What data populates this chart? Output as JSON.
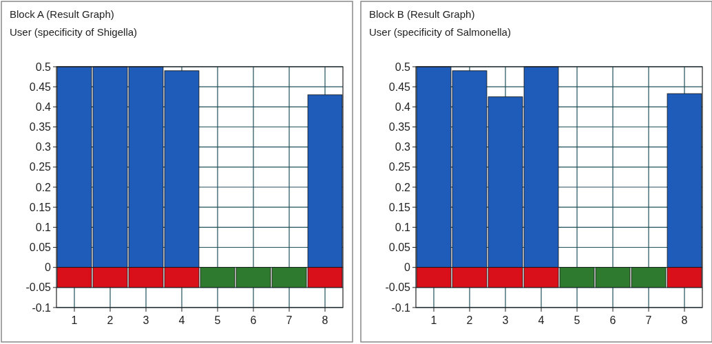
{
  "chart_data": [
    {
      "type": "bar",
      "title": "Block A (Result Graph)",
      "subtitle": "User (specificity of Shigella)",
      "categories": [
        "1",
        "2",
        "3",
        "4",
        "5",
        "6",
        "7",
        "8"
      ],
      "stacked": true,
      "grid": true,
      "ylim": [
        -0.1,
        0.5
      ],
      "yticks": [
        -0.1,
        -0.05,
        0,
        0.05,
        0.1,
        0.15,
        0.2,
        0.25,
        0.3,
        0.35,
        0.4,
        0.45,
        0.5
      ],
      "series": [
        {
          "color": "#1f5bb8",
          "values": [
            0.5,
            0.5,
            0.5,
            0.49,
            null,
            null,
            null,
            0.43
          ]
        },
        {
          "colors": [
            "#d9101a",
            "#d9101a",
            "#d9101a",
            "#d9101a",
            "#2e7a2e",
            "#2e7a2e",
            "#2e7a2e",
            "#d9101a"
          ],
          "values": [
            -0.05,
            -0.05,
            -0.05,
            -0.05,
            -0.05,
            -0.05,
            -0.05,
            -0.05
          ]
        }
      ]
    },
    {
      "type": "bar",
      "title": "Block B (Result Graph)",
      "subtitle": "User (specificity of Salmonella)",
      "categories": [
        "1",
        "2",
        "3",
        "4",
        "5",
        "6",
        "7",
        "8"
      ],
      "stacked": true,
      "grid": true,
      "ylim": [
        -0.1,
        0.5
      ],
      "yticks": [
        -0.1,
        -0.05,
        0,
        0.05,
        0.1,
        0.15,
        0.2,
        0.25,
        0.3,
        0.35,
        0.4,
        0.45,
        0.5
      ],
      "series": [
        {
          "color": "#1f5bb8",
          "values": [
            0.5,
            0.49,
            0.425,
            0.5,
            null,
            null,
            null,
            0.433
          ]
        },
        {
          "colors": [
            "#d9101a",
            "#d9101a",
            "#d9101a",
            "#d9101a",
            "#2e7a2e",
            "#2e7a2e",
            "#2e7a2e",
            "#d9101a"
          ],
          "values": [
            -0.05,
            -0.05,
            -0.05,
            -0.05,
            -0.05,
            -0.05,
            -0.05,
            -0.05
          ]
        }
      ]
    }
  ]
}
